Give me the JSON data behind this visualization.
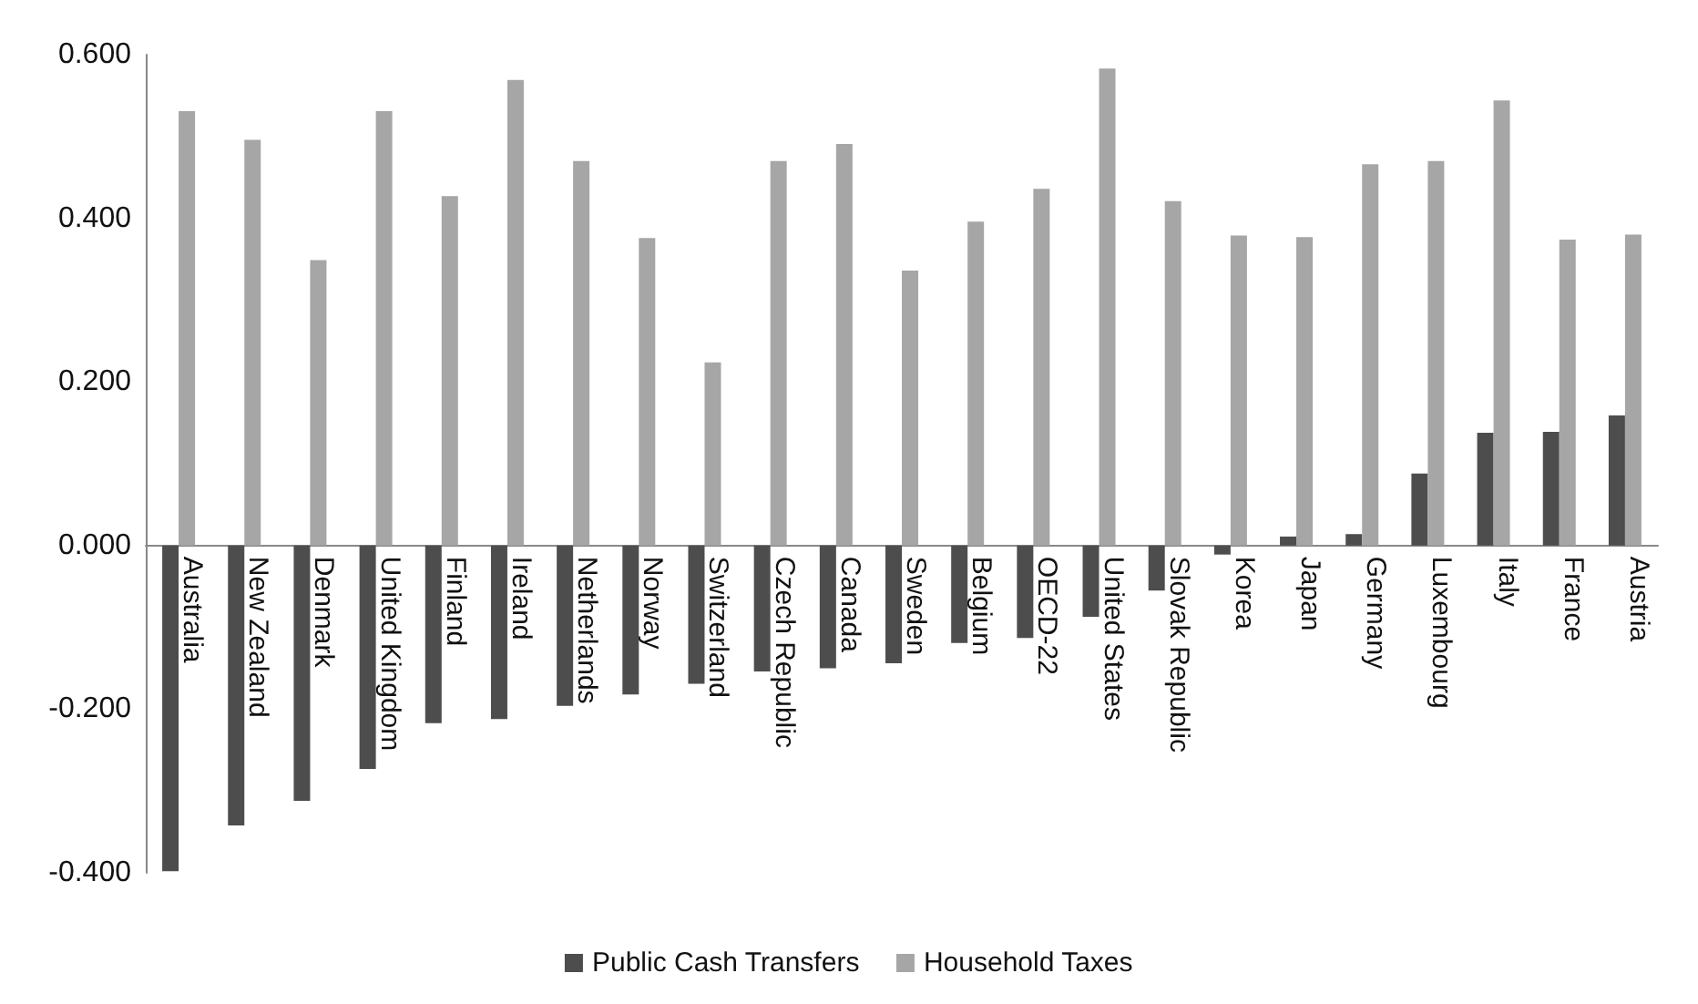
{
  "chart_data": {
    "type": "bar",
    "categories": [
      "Australia",
      "New Zealand",
      "Denmark",
      "United Kingdom",
      "Finland",
      "Ireland",
      "Netherlands",
      "Norway",
      "Switzerland",
      "Czech Republic",
      "Canada",
      "Sweden",
      "Belgium",
      "OECD-22",
      "United States",
      "Slovak Republic",
      "Korea",
      "Japan",
      "Germany",
      "Luxembourg",
      "Italy",
      "France",
      "Austria"
    ],
    "series": [
      {
        "name": "Public Cash Transfers",
        "color": "#4d4d4d",
        "values": [
          -0.398,
          -0.342,
          -0.312,
          -0.273,
          -0.217,
          -0.212,
          -0.196,
          -0.182,
          -0.169,
          -0.154,
          -0.15,
          -0.144,
          -0.119,
          -0.113,
          -0.087,
          -0.055,
          -0.011,
          0.011,
          0.014,
          0.088,
          0.138,
          0.139,
          0.159
        ]
      },
      {
        "name": "Household Taxes",
        "color": "#a6a6a6",
        "values": [
          0.531,
          0.496,
          0.349,
          0.531,
          0.427,
          0.569,
          0.47,
          0.376,
          0.224,
          0.47,
          0.491,
          0.336,
          0.396,
          0.436,
          0.583,
          0.421,
          0.379,
          0.377,
          0.466,
          0.47,
          0.544,
          0.374,
          0.38
        ]
      }
    ],
    "ylim": [
      -0.4,
      0.6
    ],
    "yticks": [
      {
        "value": -0.4,
        "label": "-0.400"
      },
      {
        "value": -0.2,
        "label": "-0.200"
      },
      {
        "value": 0,
        "label": "0.000"
      },
      {
        "value": 0.2,
        "label": "0.200"
      },
      {
        "value": 0.4,
        "label": "0.400"
      },
      {
        "value": 0.6,
        "label": "0.600"
      }
    ],
    "grid": false,
    "legend": "bottom"
  }
}
